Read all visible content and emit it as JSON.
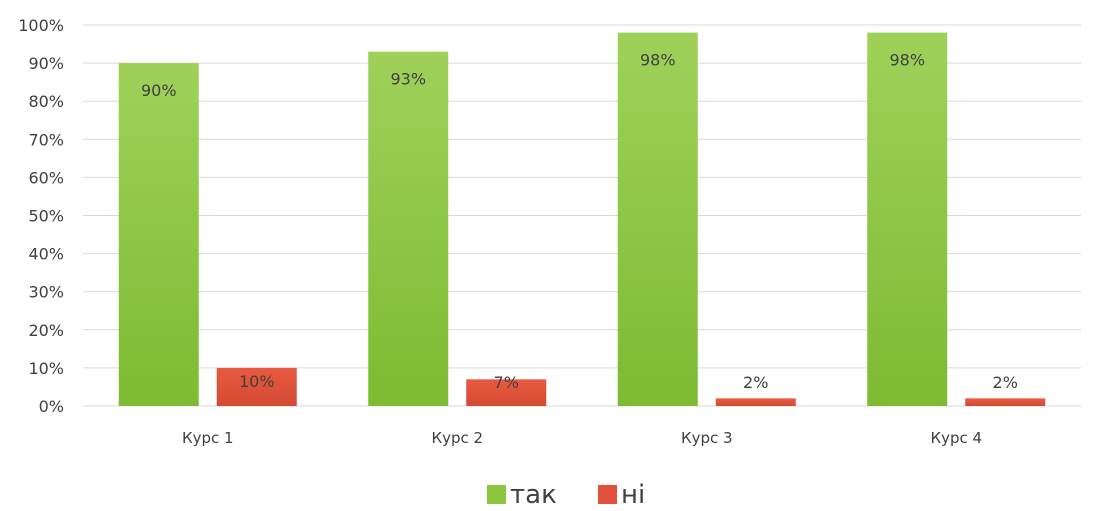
{
  "chart_data": {
    "type": "bar",
    "categories": [
      "Курс 1",
      "Курс 2",
      "Курс 3",
      "Курс 4"
    ],
    "series": [
      {
        "name": "так",
        "values": [
          90,
          93,
          98,
          98
        ],
        "labels": [
          "90%",
          "93%",
          "98%",
          "98%"
        ],
        "color": "#8cc63f"
      },
      {
        "name": "ні",
        "values": [
          10,
          7,
          2,
          2
        ],
        "labels": [
          "10%",
          "7%",
          "2%",
          "2%"
        ],
        "color": "#e0503a"
      }
    ],
    "ylim": [
      0,
      100
    ],
    "yticks": [
      "0%",
      "10%",
      "20%",
      "30%",
      "40%",
      "50%",
      "60%",
      "70%",
      "80%",
      "90%",
      "100%"
    ],
    "grid": true,
    "legend": "bottom",
    "title": "",
    "xlabel": "",
    "ylabel": ""
  }
}
